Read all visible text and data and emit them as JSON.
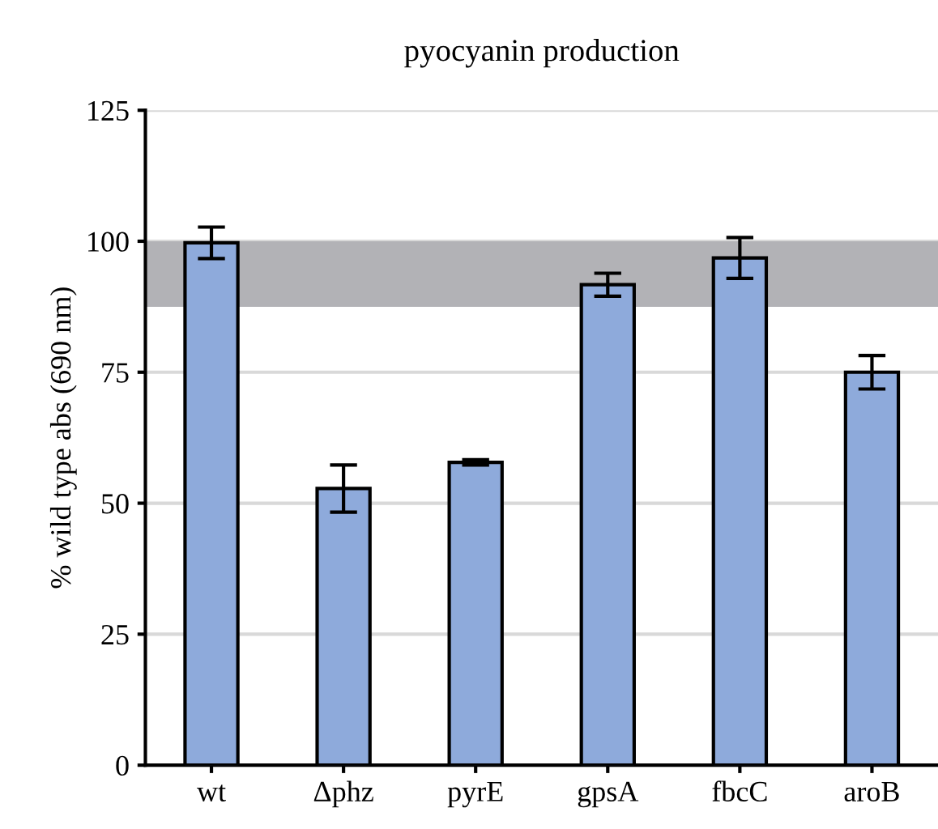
{
  "chart_data": {
    "type": "bar",
    "title": "pyocyanin production",
    "ylabel": "% wild type abs (690 nm)",
    "categories": [
      "wt",
      "Δphz",
      "pyrE",
      "gpsA",
      "fbcC",
      "aroB"
    ],
    "values": [
      99.7,
      52.8,
      57.8,
      91.7,
      96.8,
      75
    ],
    "errors": [
      3,
      4.5,
      0.5,
      2.2,
      3.9,
      3.2
    ],
    "color": "#8eaadb",
    "ylim": [
      0,
      125
    ],
    "yticks": [
      0,
      25,
      50,
      75,
      100,
      125
    ],
    "grid": "y",
    "bands": [
      {
        "axis": "y",
        "from": 87.5,
        "to": 100,
        "color": "#b2b2b6"
      }
    ]
  }
}
